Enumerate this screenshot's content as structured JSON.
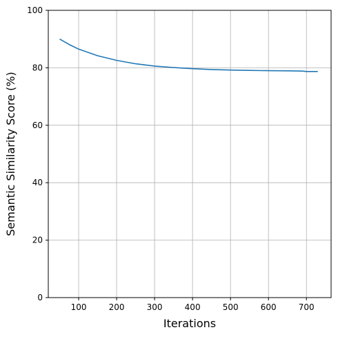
{
  "chart_data": {
    "type": "line",
    "title": "",
    "xlabel": "Iterations",
    "ylabel": "Semantic Similarity Score (%)",
    "xlim": [
      20,
      765
    ],
    "ylim": [
      0,
      100
    ],
    "xticks": [
      100,
      200,
      300,
      400,
      500,
      600,
      700
    ],
    "yticks": [
      0,
      20,
      40,
      60,
      80,
      100
    ],
    "xtick_labels": [
      "100",
      "200",
      "300",
      "400",
      "500",
      "600",
      "700"
    ],
    "ytick_labels": [
      "0",
      "20",
      "40",
      "60",
      "80",
      "100"
    ],
    "grid": true,
    "legend": "none",
    "series": [
      {
        "color": "#1f77b4",
        "x": [
          50,
          75,
          100,
          150,
          200,
          250,
          300,
          350,
          400,
          450,
          500,
          550,
          600,
          650,
          690,
          700,
          730
        ],
        "y": [
          90.0,
          88.1,
          86.5,
          84.2,
          82.6,
          81.4,
          80.6,
          80.1,
          79.7,
          79.4,
          79.2,
          79.1,
          79.0,
          78.95,
          78.85,
          78.7,
          78.7
        ]
      }
    ]
  }
}
